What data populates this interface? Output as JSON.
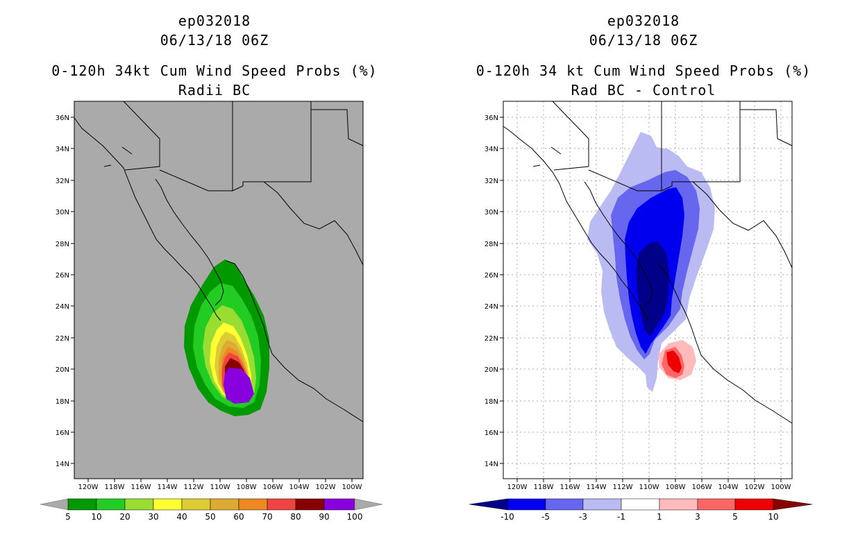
{
  "panels": [
    {
      "id": "left",
      "storm_id": "ep032018",
      "datetime": "06/13/18 06Z",
      "title": "0-120h 34kt Cum Wind Speed Probs (%)",
      "subtitle": "Radii BC",
      "background": "#aaaaaa",
      "gridlines": false,
      "colorbar": {
        "labels": [
          "5",
          "10",
          "20",
          "30",
          "40",
          "50",
          "60",
          "70",
          "80",
          "90",
          "100"
        ],
        "colors": [
          "#009900",
          "#22cc22",
          "#99dd33",
          "#ffff33",
          "#ddcc33",
          "#ddaa33",
          "#ee8822",
          "#ee4444",
          "#880000",
          "#8800dd"
        ],
        "end_low": "#aaaaaa",
        "end_high": "#aaaaaa"
      }
    },
    {
      "id": "right",
      "storm_id": "ep032018",
      "datetime": "06/13/18 06Z",
      "title": "0-120h 34 kt Cum Wind Speed Probs (%)",
      "subtitle": "Rad BC - Control",
      "background": "#ffffff",
      "gridlines": true,
      "colorbar": {
        "labels": [
          "-10",
          "-5",
          "-3",
          "-1",
          "1",
          "3",
          "5",
          "10"
        ],
        "colors": [
          "#0000ee",
          "#6666ee",
          "#bbbbf4",
          "#ffffff",
          "#ffbbbb",
          "#ff6666",
          "#ee0000"
        ],
        "end_low": "#000088",
        "end_high": "#880000"
      }
    }
  ],
  "axes": {
    "lat_labels": [
      "36N",
      "34N",
      "32N",
      "30N",
      "28N",
      "26N",
      "24N",
      "22N",
      "20N",
      "18N",
      "16N",
      "14N"
    ],
    "lon_labels": [
      "120W",
      "118W",
      "116W",
      "114W",
      "112W",
      "110W",
      "108W",
      "106W",
      "104W",
      "102W",
      "100W"
    ]
  }
}
